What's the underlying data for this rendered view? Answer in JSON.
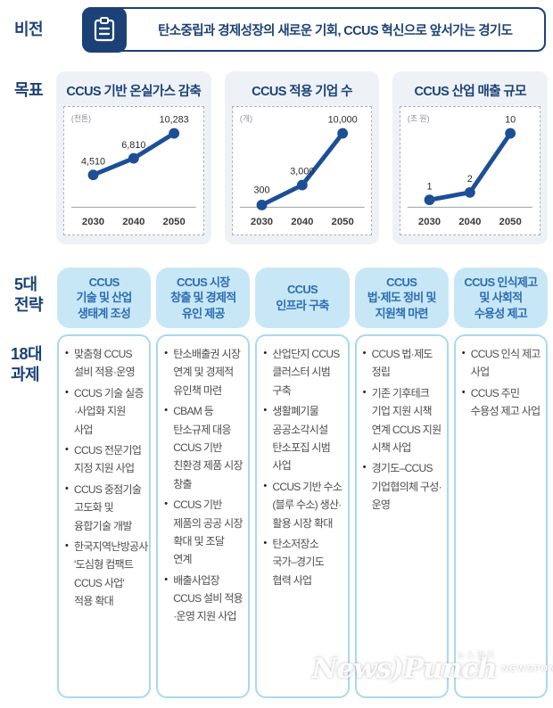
{
  "vision": {
    "label": "비전",
    "icon": "clipboard-icon",
    "text": "탄소중립과 경제성장의 새로운 기회, CCUS 혁신으로 앞서가는 경기도"
  },
  "goals": {
    "label": "목표",
    "charts": [
      {
        "title": "CCUS 기반 온실가스 감축",
        "unit": "(천톤)",
        "years": [
          "2030",
          "2040",
          "2050"
        ],
        "values": [
          4510,
          6810,
          10283
        ],
        "labels": [
          "4,510",
          "6,810",
          "10,283"
        ]
      },
      {
        "title": "CCUS 적용 기업 수",
        "unit": "(개)",
        "years": [
          "2030",
          "2040",
          "2050"
        ],
        "values": [
          300,
          3000,
          10000
        ],
        "labels": [
          "300",
          "3,000",
          "10,000"
        ]
      },
      {
        "title": "CCUS 산업 매출 규모",
        "unit": "(조 원)",
        "years": [
          "2030",
          "2040",
          "2050"
        ],
        "values": [
          1,
          2,
          10
        ],
        "labels": [
          "1",
          "2",
          "10"
        ]
      }
    ]
  },
  "chart_data": [
    {
      "type": "line",
      "title": "CCUS 기반 온실가스 감축",
      "ylabel": "(천톤)",
      "categories": [
        "2030",
        "2040",
        "2050"
      ],
      "values": [
        4510,
        6810,
        10283
      ],
      "ylim": [
        0,
        10283
      ],
      "grid": false,
      "line_color": "#1d4f97"
    },
    {
      "type": "line",
      "title": "CCUS 적용 기업 수",
      "ylabel": "(개)",
      "categories": [
        "2030",
        "2040",
        "2050"
      ],
      "values": [
        300,
        3000,
        10000
      ],
      "ylim": [
        0,
        10000
      ],
      "grid": false,
      "line_color": "#1d4f97"
    },
    {
      "type": "line",
      "title": "CCUS 산업 매출 규모",
      "ylabel": "(조 원)",
      "categories": [
        "2030",
        "2040",
        "2050"
      ],
      "values": [
        1,
        2,
        10
      ],
      "ylim": [
        0,
        10
      ],
      "grid": false,
      "line_color": "#1d4f97"
    }
  ],
  "strategies": {
    "label": "5대\n전략",
    "headers": [
      "CCUS\n기술 및 산업\n생태계 조성",
      "CCUS 시장\n창출 및 경제적\n유인 제공",
      "CCUS\n인프라 구축",
      "CCUS\n법·제도 정비 및\n지원책 마련",
      "CCUS 인식제고\n및 사회적\n수용성 제고"
    ]
  },
  "tasks": {
    "label": "18대\n과제",
    "columns": [
      [
        "맞춤형 CCUS 설비 적용·운영",
        "CCUS 기술 실증·사업화 지원 사업",
        "CCUS 전문기업 지정 지원 사업",
        "CCUS 중점기술 고도화 및 융합기술 개발",
        "한국지역난방공사 '도심형 컴팩트 CCUS 사업' 적용 확대"
      ],
      [
        "탄소배출권 시장 연계 및 경제적 유인책 마련",
        "CBAM 등 탄소규제 대응 CCUS 기반 친환경 제품 시장 창출",
        "CCUS 기반 제품의 공공 시장 확대 및 조달 연계",
        "배출사업장 CCUS 설비 적용·운영 지원 사업"
      ],
      [
        "산업단지 CCUS 클러스터 시범 구축",
        "생활폐기물 공공소각시설 탄소포집 시범 사업",
        "CCUS 기반 수소(블루 수소) 생산·활용 시장 확대",
        "탄소저장소 국가–경기도 협력 사업"
      ],
      [
        "CCUS 법·제도 정립",
        "기존 기후테크 기업 지원 시책 연계 CCUS 지원 시책 사업",
        "경기도–CCUS 기업협의체 구성·운영"
      ],
      [
        "CCUS 인식 제고 사업",
        "CCUS 주민 수용성 제고 사업"
      ]
    ]
  },
  "watermark": {
    "korean": "뉴스펀치",
    "logo": "News)Punch",
    "caps": "NEWSPUNCH"
  },
  "colors": {
    "navy": "#1b4176",
    "chart_line": "#1d4f97",
    "header_fill": "#c8e7f6",
    "header_text": "#2a6cb3",
    "card_bg": "#eef2f7",
    "task_border": "#a8d9f1",
    "glove_red": "#e23d3d",
    "burst_yellow": "#f7d028"
  }
}
